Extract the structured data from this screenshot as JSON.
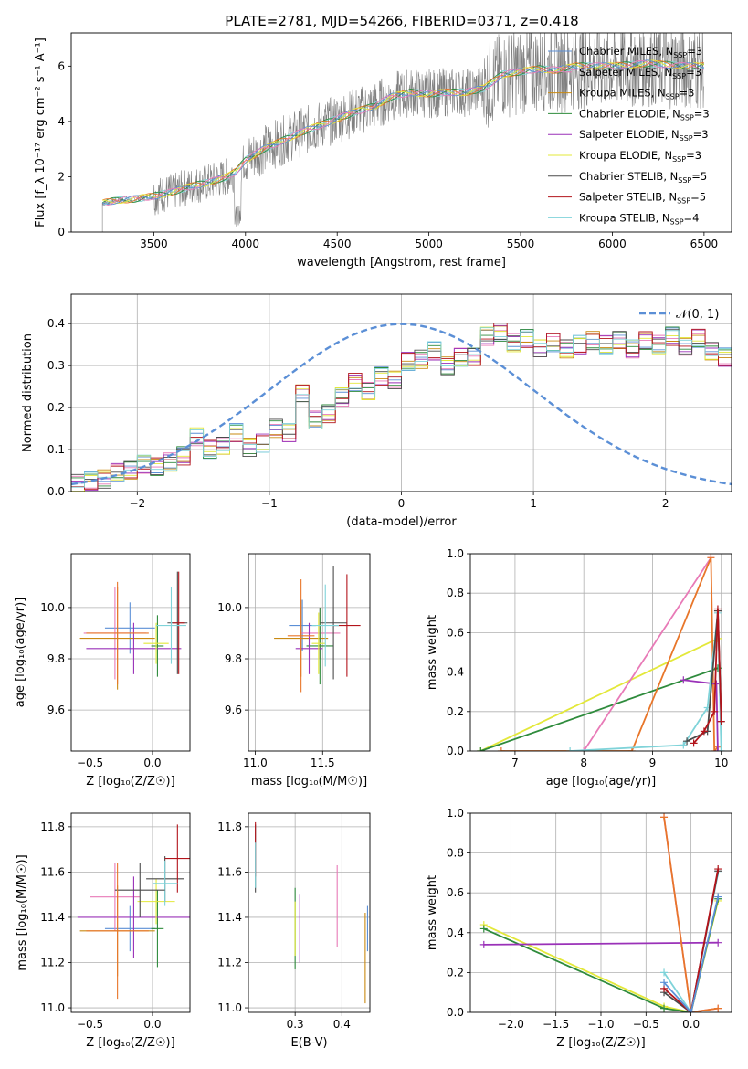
{
  "colors": {
    "chabrier_miles": "#5b8fd6",
    "salpeter_miles": "#e87ab7",
    "kroupa_miles": "#c98a12",
    "chabrier_elodie": "#2e8b3c",
    "salpeter_elodie": "#9a31b8",
    "kroupa_elodie": "#e3e83a",
    "chabrier_stelib": "#4a4a4a",
    "salpeter_stelib": "#b3141b",
    "kroupa_stelib": "#7fd3d9",
    "spectrum": "#808080",
    "orange": "#e8762a",
    "normal": "#5b8fd6"
  },
  "chart_data": [
    {
      "id": "spectrum",
      "type": "line",
      "title": "PLATE=2781, MJD=54266, FIBERID=0371, z=0.418",
      "xlabel": "wavelength [Angstrom, rest frame]",
      "ylabel": "Flux [f_λ 10⁻¹⁷ erg cm⁻² s⁻¹ A⁻¹]",
      "xlim": [
        3050,
        6650
      ],
      "ylim": [
        0,
        7.2
      ],
      "xticks": [
        3500,
        4000,
        4500,
        5000,
        5500,
        6000,
        6500
      ],
      "yticks": [
        0,
        2,
        4,
        6
      ],
      "legend_position": "upper-right",
      "legend": [
        {
          "label": "Chabrier MILES, N_SSP=3",
          "color_key": "chabrier_miles"
        },
        {
          "label": "Salpeter MILES, N_SSP=3",
          "color_key": "salpeter_miles"
        },
        {
          "label": "Kroupa MILES, N_SSP=3",
          "color_key": "kroupa_miles"
        },
        {
          "label": "Chabrier ELODIE, N_SSP=3",
          "color_key": "chabrier_elodie"
        },
        {
          "label": "Salpeter ELODIE, N_SSP=3",
          "color_key": "salpeter_elodie"
        },
        {
          "label": "Kroupa ELODIE, N_SSP=3",
          "color_key": "kroupa_elodie"
        },
        {
          "label": "Chabrier STELIB, N_SSP=5",
          "color_key": "chabrier_stelib"
        },
        {
          "label": "Salpeter STELIB, N_SSP=5",
          "color_key": "salpeter_stelib"
        },
        {
          "label": "Kroupa STELIB, N_SSP=4",
          "color_key": "kroupa_stelib"
        }
      ],
      "continuum": [
        [
          3220,
          1.05
        ],
        [
          3300,
          1.15
        ],
        [
          3400,
          1.2
        ],
        [
          3500,
          1.3
        ],
        [
          3600,
          1.45
        ],
        [
          3700,
          1.65
        ],
        [
          3800,
          1.8
        ],
        [
          3900,
          2.0
        ],
        [
          3950,
          2.2
        ],
        [
          4000,
          2.6
        ],
        [
          4100,
          3.0
        ],
        [
          4200,
          3.3
        ],
        [
          4300,
          3.6
        ],
        [
          4400,
          3.85
        ],
        [
          4500,
          4.1
        ],
        [
          4600,
          4.35
        ],
        [
          4700,
          4.55
        ],
        [
          4800,
          4.9
        ],
        [
          4900,
          5.05
        ],
        [
          5000,
          5.0
        ],
        [
          5100,
          5.05
        ],
        [
          5200,
          5.05
        ],
        [
          5300,
          5.2
        ],
        [
          5400,
          5.7
        ],
        [
          5500,
          5.8
        ],
        [
          5600,
          5.9
        ],
        [
          5700,
          5.85
        ],
        [
          5800,
          6.0
        ],
        [
          5900,
          6.0
        ],
        [
          6000,
          6.0
        ],
        [
          6200,
          6.1
        ],
        [
          6400,
          6.0
        ],
        [
          6500,
          6.0
        ]
      ]
    },
    {
      "id": "histogram",
      "type": "histogram",
      "xlabel": "(data-model)/error",
      "ylabel": "Normed distribution",
      "xlim": [
        -2.5,
        2.5
      ],
      "ylim": [
        0,
        0.47
      ],
      "xticks": [
        -2,
        -1,
        0,
        1,
        2
      ],
      "yticks": [
        0.0,
        0.1,
        0.2,
        0.3,
        0.4
      ],
      "grid": true,
      "legend_position": "upper-right",
      "normal_label": "𝒩(0, 1)",
      "bin_width": 0.1,
      "bin_start": -2.5,
      "base": [
        0.02,
        0.025,
        0.03,
        0.045,
        0.05,
        0.065,
        0.06,
        0.07,
        0.085,
        0.13,
        0.1,
        0.11,
        0.14,
        0.105,
        0.115,
        0.15,
        0.14,
        0.235,
        0.17,
        0.185,
        0.225,
        0.26,
        0.24,
        0.275,
        0.265,
        0.31,
        0.315,
        0.335,
        0.3,
        0.32,
        0.32,
        0.37,
        0.38,
        0.355,
        0.365,
        0.34,
        0.355,
        0.34,
        0.35,
        0.36,
        0.35,
        0.36,
        0.34,
        0.36,
        0.35,
        0.37,
        0.345,
        0.365,
        0.335,
        0.32,
        0.325,
        0.32,
        0.345,
        0.325,
        0.29,
        0.28,
        0.3,
        0.255,
        0.245,
        0.255,
        0.22,
        0.215,
        0.2,
        0.18,
        0.14,
        0.15,
        0.13,
        0.115,
        0.095,
        0.09,
        0.085,
        0.085,
        0.065,
        0.065,
        0.07,
        0.06,
        0.055,
        0.05,
        0.055,
        0.045,
        0.04,
        0.04,
        0.045,
        0.035,
        0.03,
        0.035,
        0.03,
        0.025,
        0.03,
        0.025,
        0.02,
        0.02,
        0.025,
        0.02,
        0.02,
        0.025,
        0.02,
        0.02,
        0.02,
        0.02
      ]
    },
    {
      "id": "age_vs_z",
      "type": "errorbar",
      "xlabel": "Z [log₁₀(Z/Z☉)]",
      "ylabel": "age  [log₁₀(age/yr)]",
      "xlim": [
        -0.65,
        0.3
      ],
      "ylim": [
        9.44,
        10.21
      ],
      "xticks": [
        -0.5,
        0.0
      ],
      "xticklabels": [
        "−0.5",
        "0.0"
      ],
      "yticks": [
        9.6,
        9.8,
        10.0
      ],
      "grid": true,
      "points": [
        {
          "key": "chabrier_miles",
          "x": -0.18,
          "xerr": 0.2,
          "y": 9.92,
          "yerr": 0.1
        },
        {
          "key": "salpeter_miles",
          "x": -0.3,
          "xerr": 0.25,
          "y": 9.9,
          "yerr": 0.18
        },
        {
          "key": "kroupa_miles",
          "x": -0.28,
          "xerr": 0.3,
          "y": 9.88,
          "yerr": 0.2
        },
        {
          "key": "chabrier_elodie",
          "x": 0.04,
          "xerr": 0.05,
          "y": 9.85,
          "yerr": 0.12
        },
        {
          "key": "salpeter_elodie",
          "x": -0.15,
          "xerr": 0.38,
          "y": 9.84,
          "yerr": 0.1
        },
        {
          "key": "kroupa_elodie",
          "x": 0.03,
          "xerr": 0.1,
          "y": 9.86,
          "yerr": 0.08
        },
        {
          "key": "chabrier_stelib",
          "x": 0.2,
          "xerr": 0.08,
          "y": 9.94,
          "yerr": 0.2
        },
        {
          "key": "salpeter_stelib",
          "x": 0.21,
          "xerr": 0.05,
          "y": 9.94,
          "yerr": 0.2
        },
        {
          "key": "kroupa_stelib",
          "x": 0.15,
          "xerr": 0.12,
          "y": 9.93,
          "yerr": 0.15
        },
        {
          "key": "orange",
          "x": -0.28,
          "xerr": 0.25,
          "y": 9.9,
          "yerr": 0.2
        }
      ]
    },
    {
      "id": "age_vs_mass",
      "type": "errorbar",
      "xlabel": "mass [log₁₀(M/M☉)]",
      "ylabel": "",
      "xlim": [
        10.95,
        11.85
      ],
      "ylim": [
        9.44,
        10.21
      ],
      "xticks": [
        11.0,
        11.5
      ],
      "xticklabels": [
        "11.0",
        "11.5"
      ],
      "yticks": [
        9.6,
        9.8,
        10.0
      ],
      "grid": true,
      "points": [
        {
          "key": "chabrier_miles",
          "x": 11.35,
          "xerr": 0.1,
          "y": 9.93,
          "yerr": 0.1
        },
        {
          "key": "salpeter_miles",
          "x": 11.48,
          "xerr": 0.15,
          "y": 9.9,
          "yerr": 0.1
        },
        {
          "key": "kroupa_miles",
          "x": 11.34,
          "xerr": 0.2,
          "y": 9.88,
          "yerr": 0.15
        },
        {
          "key": "chabrier_elodie",
          "x": 11.48,
          "xerr": 0.1,
          "y": 9.85,
          "yerr": 0.15
        },
        {
          "key": "salpeter_elodie",
          "x": 11.4,
          "xerr": 0.1,
          "y": 9.84,
          "yerr": 0.1
        },
        {
          "key": "kroupa_elodie",
          "x": 11.47,
          "xerr": 0.05,
          "y": 9.86,
          "yerr": 0.12
        },
        {
          "key": "chabrier_stelib",
          "x": 11.58,
          "xerr": 0.1,
          "y": 9.94,
          "yerr": 0.22
        },
        {
          "key": "salpeter_stelib",
          "x": 11.68,
          "xerr": 0.1,
          "y": 9.93,
          "yerr": 0.2
        },
        {
          "key": "kroupa_stelib",
          "x": 11.52,
          "xerr": 0.1,
          "y": 9.93,
          "yerr": 0.16
        },
        {
          "key": "orange",
          "x": 11.34,
          "xerr": 0.1,
          "y": 9.89,
          "yerr": 0.22
        }
      ]
    },
    {
      "id": "weight_vs_age",
      "type": "line",
      "xlabel": "age  [log₁₀(age/yr)]",
      "ylabel": "mass weight",
      "xlim": [
        6.35,
        10.15
      ],
      "ylim": [
        0,
        1
      ],
      "xticks": [
        7,
        8,
        9,
        10
      ],
      "yticks": [
        0.0,
        0.2,
        0.4,
        0.6,
        0.8,
        1.0
      ],
      "grid": true,
      "series": [
        {
          "key": "kroupa_elodie",
          "x": [
            6.5,
            9.95
          ],
          "y": [
            0.0,
            0.57
          ]
        },
        {
          "key": "chabrier_elodie",
          "x": [
            6.5,
            9.95
          ],
          "y": [
            0.0,
            0.42
          ]
        },
        {
          "key": "salpeter_miles",
          "x": [
            8.0,
            9.85
          ],
          "y": [
            0.0,
            0.98
          ]
        },
        {
          "key": "orange",
          "x": [
            6.8,
            8.7,
            9.85,
            9.9,
            9.95
          ],
          "y": [
            0.0,
            0.0,
            0.98,
            0.0,
            0.02
          ]
        },
        {
          "key": "salpeter_elodie",
          "x": [
            9.45,
            9.93,
            9.95
          ],
          "y": [
            0.36,
            0.34,
            0.0
          ]
        },
        {
          "key": "kroupa_stelib",
          "x": [
            7.8,
            9.45,
            9.8,
            9.95,
            10.0
          ],
          "y": [
            0.0,
            0.03,
            0.22,
            0.7,
            0.0
          ]
        },
        {
          "key": "chabrier_stelib",
          "x": [
            9.5,
            9.8,
            9.95,
            10.0
          ],
          "y": [
            0.05,
            0.1,
            0.71,
            0.15
          ]
        },
        {
          "key": "salpeter_stelib",
          "x": [
            9.6,
            9.75,
            9.9,
            9.95,
            10.0
          ],
          "y": [
            0.04,
            0.1,
            0.2,
            0.72,
            0.15
          ]
        }
      ]
    },
    {
      "id": "mass_vs_z",
      "type": "errorbar",
      "xlabel": "Z [log₁₀(Z/Z☉)]",
      "ylabel": "mass [log₁₀(M/M☉)]",
      "xlim": [
        -0.65,
        0.3
      ],
      "ylim": [
        10.98,
        11.86
      ],
      "xticks": [
        -0.5,
        0.0
      ],
      "xticklabels": [
        "−0.5",
        "0.0"
      ],
      "yticks": [
        11.0,
        11.2,
        11.4,
        11.6,
        11.8
      ],
      "grid": true,
      "points": [
        {
          "key": "chabrier_miles",
          "x": -0.18,
          "xerr": 0.2,
          "y": 11.35,
          "yerr": 0.1
        },
        {
          "key": "salpeter_miles",
          "x": -0.3,
          "xerr": 0.2,
          "y": 11.49,
          "yerr": 0.15
        },
        {
          "key": "kroupa_miles",
          "x": -0.28,
          "xerr": 0.3,
          "y": 11.34,
          "yerr": 0.2
        },
        {
          "key": "chabrier_elodie",
          "x": 0.04,
          "xerr": 0.05,
          "y": 11.35,
          "yerr": 0.17
        },
        {
          "key": "salpeter_elodie",
          "x": -0.15,
          "xerr": 0.45,
          "y": 11.4,
          "yerr": 0.18
        },
        {
          "key": "kroupa_elodie",
          "x": 0.03,
          "xerr": 0.15,
          "y": 11.47,
          "yerr": 0.1
        },
        {
          "key": "chabrier_stelib",
          "x": 0.1,
          "xerr": 0.15,
          "y": 11.57,
          "yerr": 0.1
        },
        {
          "key": "salpeter_stelib",
          "x": 0.2,
          "xerr": 0.1,
          "y": 11.66,
          "yerr": 0.15
        },
        {
          "key": "kroupa_stelib",
          "x": 0.1,
          "xerr": 0.1,
          "y": 11.55,
          "yerr": 0.1
        },
        {
          "key": "chabrier_stelib",
          "x": -0.1,
          "xerr": 0.2,
          "y": 11.52,
          "yerr": 0.12
        },
        {
          "key": "orange",
          "x": -0.28,
          "xerr": 0.25,
          "y": 11.34,
          "yerr": 0.3
        }
      ]
    },
    {
      "id": "mass_vs_ebv",
      "type": "errorbar",
      "xlabel": "E(B-V)",
      "ylabel": "",
      "xlim": [
        0.2,
        0.46
      ],
      "ylim": [
        10.98,
        11.86
      ],
      "xticks": [
        0.3,
        0.4
      ],
      "xticklabels": [
        "0.3",
        "0.4"
      ],
      "yticks": [
        11.0,
        11.2,
        11.4,
        11.6,
        11.8
      ],
      "grid": true,
      "points": [
        {
          "key": "chabrier_miles",
          "x": 0.455,
          "xerr": 0,
          "y": 11.35,
          "yerr": 0.1
        },
        {
          "key": "salpeter_miles",
          "x": 0.39,
          "xerr": 0,
          "y": 11.45,
          "yerr": 0.18
        },
        {
          "key": "kroupa_miles",
          "x": 0.45,
          "xerr": 0,
          "y": 11.22,
          "yerr": 0.2
        },
        {
          "key": "chabrier_elodie",
          "x": 0.3,
          "xerr": 0,
          "y": 11.35,
          "yerr": 0.18
        },
        {
          "key": "salpeter_elodie",
          "x": 0.31,
          "xerr": 0,
          "y": 11.35,
          "yerr": 0.15
        },
        {
          "key": "kroupa_elodie",
          "x": 0.3,
          "xerr": 0,
          "y": 11.35,
          "yerr": 0.12
        },
        {
          "key": "chabrier_stelib",
          "x": 0.215,
          "xerr": 0,
          "y": 11.66,
          "yerr": 0.15
        },
        {
          "key": "salpeter_stelib",
          "x": 0.215,
          "xerr": 0,
          "y": 11.7,
          "yerr": 0.12
        },
        {
          "key": "kroupa_stelib",
          "x": 0.215,
          "xerr": 0,
          "y": 11.63,
          "yerr": 0.1
        }
      ]
    },
    {
      "id": "weight_vs_z",
      "type": "line",
      "xlabel": "Z [log₁₀(Z/Z☉)]",
      "ylabel": "mass weight",
      "xlim": [
        -2.45,
        0.45
      ],
      "ylim": [
        0,
        1
      ],
      "xticks": [
        -2.0,
        -1.5,
        -1.0,
        -0.5,
        0.0
      ],
      "xticklabels": [
        "−2.0",
        "−1.5",
        "−1.0",
        "−0.5",
        "0.0"
      ],
      "yticks": [
        0.0,
        0.2,
        0.4,
        0.6,
        0.8,
        1.0
      ],
      "grid": true,
      "series": [
        {
          "key": "kroupa_elodie",
          "x": [
            -2.3,
            -0.3,
            0.0,
            0.3
          ],
          "y": [
            0.44,
            0.03,
            0.0,
            0.56
          ]
        },
        {
          "key": "chabrier_elodie",
          "x": [
            -2.3,
            -0.3,
            0.0,
            0.3
          ],
          "y": [
            0.42,
            0.02,
            0.0,
            0.57
          ]
        },
        {
          "key": "salpeter_elodie",
          "x": [
            -2.3,
            0.3
          ],
          "y": [
            0.34,
            0.35
          ]
        },
        {
          "key": "salpeter_miles",
          "x": [
            -0.3,
            0.0,
            0.3
          ],
          "y": [
            0.98,
            0.0,
            0.02
          ]
        },
        {
          "key": "orange",
          "x": [
            -0.3,
            0.0,
            0.3
          ],
          "y": [
            0.98,
            0.0,
            0.02
          ]
        },
        {
          "key": "kroupa_stelib",
          "x": [
            -0.3,
            0.0,
            0.3
          ],
          "y": [
            0.2,
            0.0,
            0.7
          ]
        },
        {
          "key": "chabrier_stelib",
          "x": [
            -0.3,
            0.0,
            0.3
          ],
          "y": [
            0.1,
            0.0,
            0.71
          ]
        },
        {
          "key": "salpeter_stelib",
          "x": [
            -0.3,
            0.0,
            0.3
          ],
          "y": [
            0.12,
            0.0,
            0.72
          ]
        },
        {
          "key": "chabrier_miles",
          "x": [
            -0.3,
            0.0,
            0.3
          ],
          "y": [
            0.15,
            0.0,
            0.58
          ]
        }
      ]
    }
  ]
}
